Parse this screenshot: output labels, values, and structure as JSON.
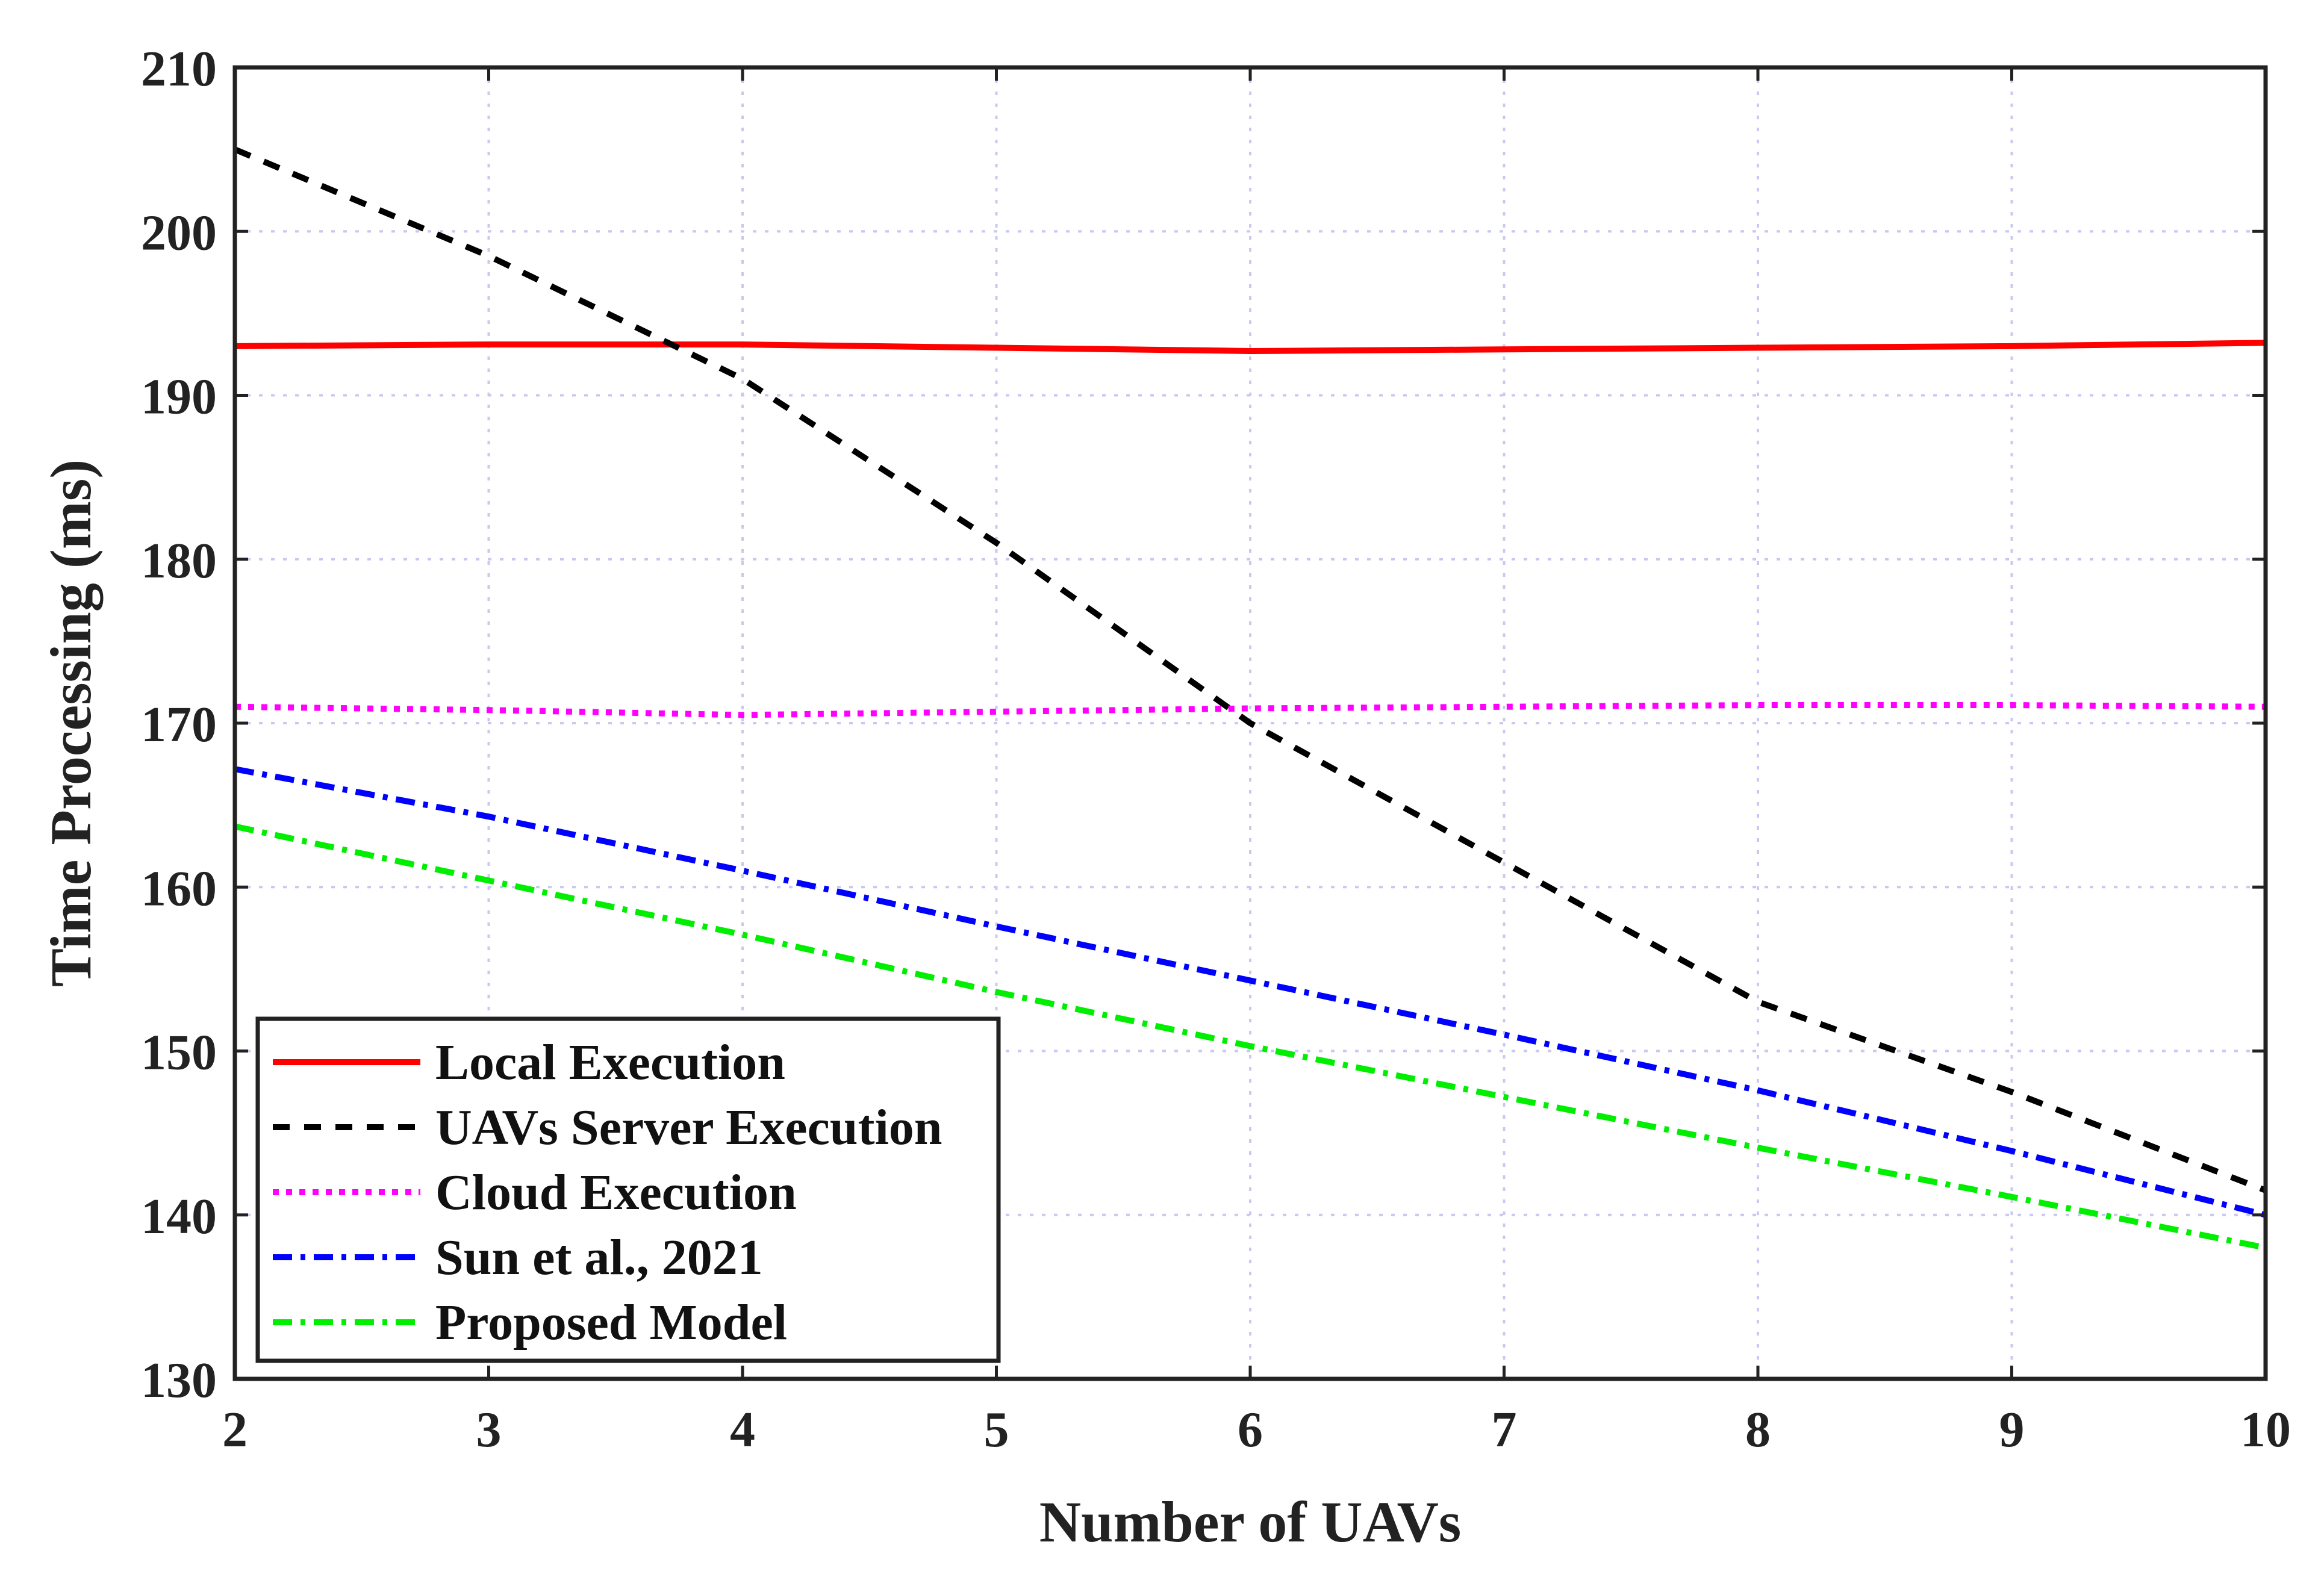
{
  "chart_data": {
    "type": "line",
    "title": "",
    "xlabel": "Number of UAVs",
    "ylabel": "Time Processing (ms)",
    "xlim": [
      2,
      10
    ],
    "ylim": [
      130,
      210
    ],
    "xticks": [
      2,
      3,
      4,
      5,
      6,
      7,
      8,
      9,
      10
    ],
    "yticks": [
      130,
      140,
      150,
      160,
      170,
      180,
      190,
      200,
      210
    ],
    "grid": true,
    "legend_position": "bottom-left",
    "x": [
      2,
      3,
      4,
      5,
      6,
      7,
      8,
      9,
      10
    ],
    "series": [
      {
        "name": "Local Execution",
        "color": "#ff0000",
        "style": "solid",
        "values": [
          193.0,
          193.1,
          193.1,
          192.9,
          192.7,
          192.8,
          192.9,
          193.0,
          193.2
        ]
      },
      {
        "name": "UAVs Server Execution",
        "color": "#000000",
        "style": "dashed",
        "values": [
          205.0,
          198.5,
          191.0,
          181.0,
          170.0,
          161.5,
          153.0,
          147.5,
          141.5
        ]
      },
      {
        "name": "Cloud Execution",
        "color": "#ff00ff",
        "style": "dotted",
        "values": [
          171.0,
          170.8,
          170.5,
          170.7,
          170.9,
          171.0,
          171.1,
          171.1,
          171.0
        ]
      },
      {
        "name": "Sun et al., 2021",
        "color": "#0000ff",
        "style": "dashdot",
        "values": [
          167.2,
          164.3,
          161.0,
          157.6,
          154.3,
          151.0,
          147.6,
          143.9,
          140.0
        ]
      },
      {
        "name": "Proposed Model",
        "color": "#00ee00",
        "style": "dashdot",
        "values": [
          163.7,
          160.4,
          157.1,
          153.6,
          150.3,
          147.2,
          144.1,
          141.1,
          138.0
        ]
      }
    ]
  }
}
